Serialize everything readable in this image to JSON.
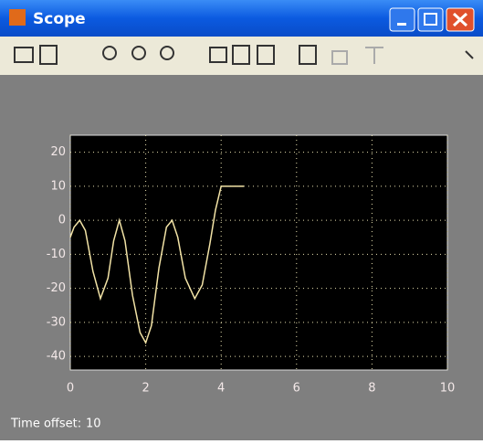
{
  "window": {
    "title": "Scope"
  },
  "chart_data": {
    "type": "line",
    "x": [
      0,
      0.1,
      0.25,
      0.4,
      0.6,
      0.8,
      1.0,
      1.15,
      1.3,
      1.45,
      1.65,
      1.85,
      2.0,
      2.15,
      2.35,
      2.55,
      2.7,
      2.85,
      3.05,
      3.3,
      3.5,
      3.7,
      3.85,
      4.0,
      4.6
    ],
    "values": [
      -5,
      -2,
      0,
      -3,
      -15,
      -23,
      -17,
      -6,
      0,
      -6,
      -22,
      -33,
      -36,
      -31,
      -14,
      -2,
      0,
      -5,
      -17,
      -23,
      -19,
      -7,
      3,
      10,
      10
    ],
    "color": "#f2e3a6",
    "xlim": [
      0,
      10
    ],
    "xticks": [
      0,
      2,
      4,
      6,
      8,
      10
    ],
    "ylim": [
      -44,
      25
    ],
    "yticks": [
      -40,
      -30,
      -20,
      -10,
      0,
      10,
      20
    ],
    "grid": true
  },
  "status": {
    "label": "Time offset:",
    "value": 10
  }
}
